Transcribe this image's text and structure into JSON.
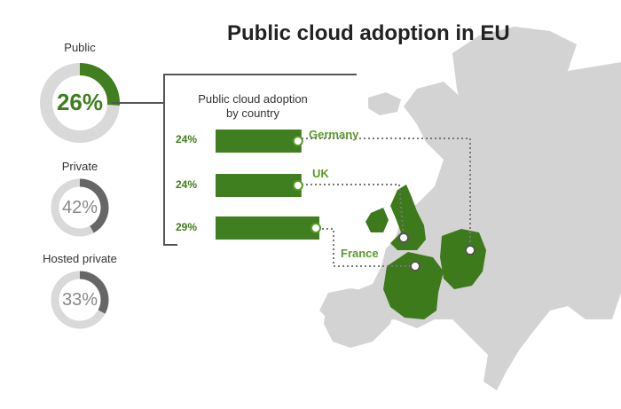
{
  "title": "Public cloud adoption in EU",
  "colors": {
    "accent": "#3f7f1f",
    "accent_light": "#5a9a2a",
    "donut_track": "#d9d9d9",
    "gray_arc": "#666666",
    "map_land": "#d3d3d3",
    "map_highlight": "#3d7a1b"
  },
  "donuts": [
    {
      "label": "Public",
      "value_text": "26%",
      "fraction": 0.26
    },
    {
      "label": "Private",
      "value_text": "42%",
      "fraction": 0.42
    },
    {
      "label": "Hosted private",
      "value_text": "33%",
      "fraction": 0.33
    }
  ],
  "panel": {
    "title_line1": "Public cloud adoption",
    "title_line2": "by country"
  },
  "chart_data": {
    "type": "bar",
    "title": "Public cloud adoption by country",
    "categories": [
      "Germany",
      "UK",
      "France"
    ],
    "values": [
      24,
      24,
      29
    ],
    "value_labels": [
      "24%",
      "24%",
      "29%"
    ],
    "unit": "%",
    "orientation": "horizontal",
    "grid": false
  }
}
